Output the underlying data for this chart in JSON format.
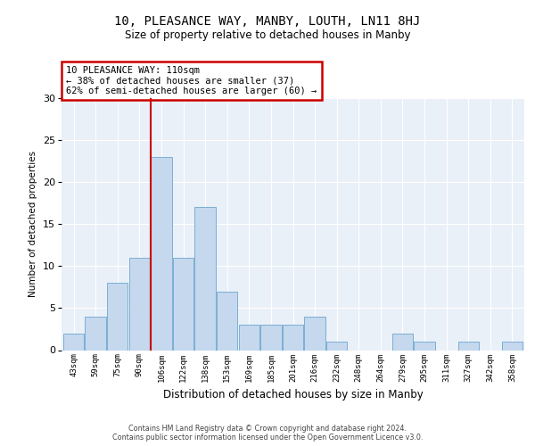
{
  "title1": "10, PLEASANCE WAY, MANBY, LOUTH, LN11 8HJ",
  "title2": "Size of property relative to detached houses in Manby",
  "xlabel": "Distribution of detached houses by size in Manby",
  "ylabel": "Number of detached properties",
  "bins": [
    "43sqm",
    "59sqm",
    "75sqm",
    "90sqm",
    "106sqm",
    "122sqm",
    "138sqm",
    "153sqm",
    "169sqm",
    "185sqm",
    "201sqm",
    "216sqm",
    "232sqm",
    "248sqm",
    "264sqm",
    "279sqm",
    "295sqm",
    "311sqm",
    "327sqm",
    "342sqm",
    "358sqm"
  ],
  "values": [
    2,
    4,
    8,
    11,
    23,
    11,
    17,
    7,
    3,
    3,
    3,
    4,
    1,
    0,
    0,
    2,
    1,
    0,
    1,
    0,
    1
  ],
  "bar_color": "#c5d8ed",
  "bar_edge_color": "#7bafd4",
  "vline_color": "#cc0000",
  "vline_bin_index": 4,
  "annotation_line1": "10 PLEASANCE WAY: 110sqm",
  "annotation_line2": "← 38% of detached houses are smaller (37)",
  "annotation_line3": "62% of semi-detached houses are larger (60) →",
  "annotation_box_color": "#ffffff",
  "annotation_box_edge": "#cc0000",
  "ylim": [
    0,
    30
  ],
  "yticks": [
    0,
    5,
    10,
    15,
    20,
    25,
    30
  ],
  "bg_color": "#eaf0f8",
  "footer1": "Contains HM Land Registry data © Crown copyright and database right 2024.",
  "footer2": "Contains public sector information licensed under the Open Government Licence v3.0."
}
